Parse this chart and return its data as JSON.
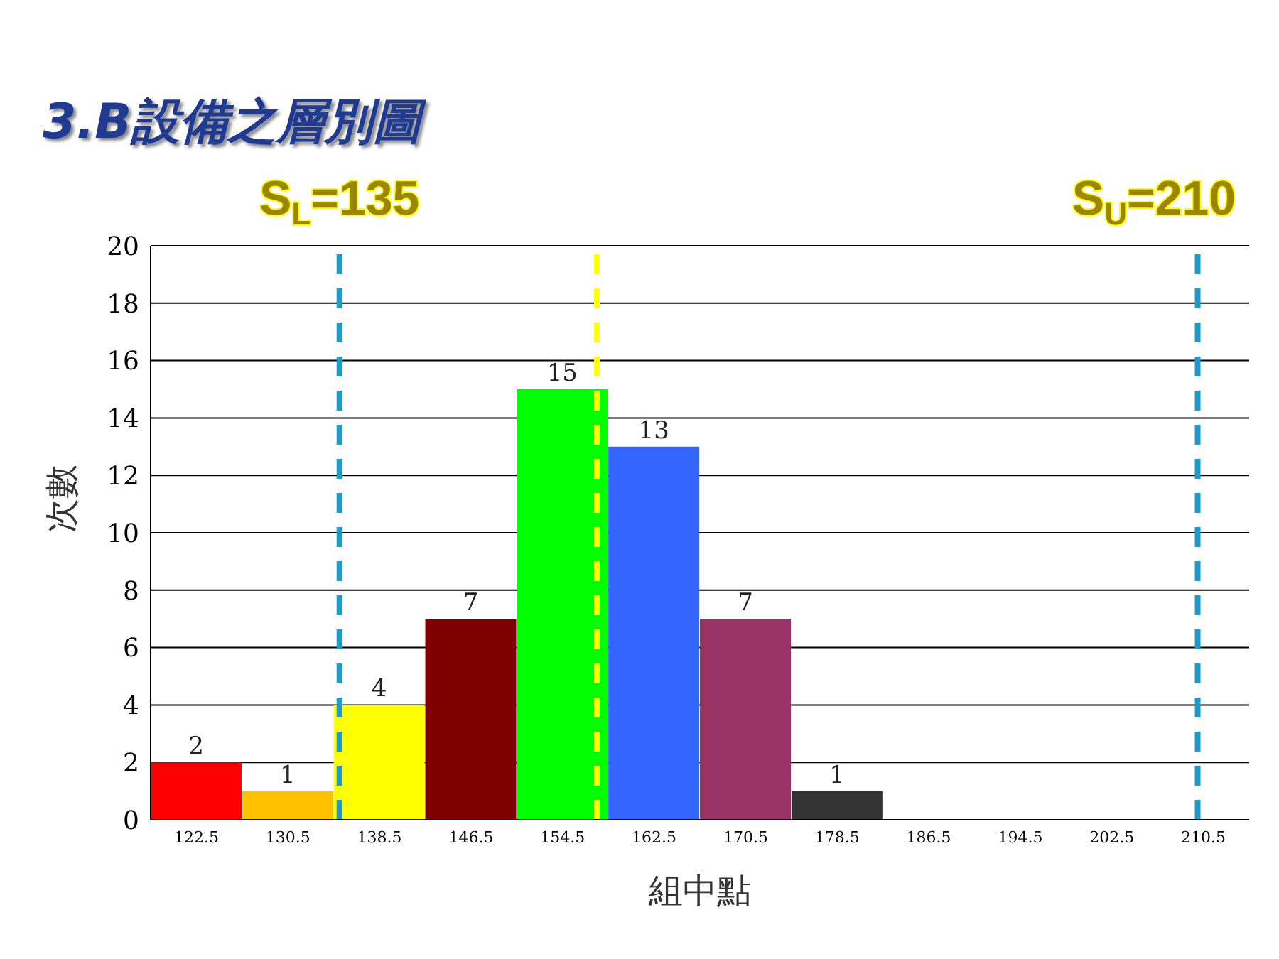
{
  "chart_data": {
    "type": "histogram",
    "title": "3.B設備之層別圖",
    "xlabel": "組中點",
    "ylabel": "次數",
    "bins": [
      118.5,
      126.5,
      134.5,
      142.5,
      150.5,
      158.5,
      166.5,
      174.5,
      182.5,
      190.5,
      198.5,
      206.5,
      214.5
    ],
    "values": [
      2,
      1,
      4,
      7,
      15,
      13,
      7,
      1,
      0,
      0,
      0,
      0
    ],
    "colors": [
      "#ff0000",
      "#ffc000",
      "#ffff00",
      "#800000",
      "#00ff00",
      "#3366ff",
      "#993366",
      "#333333",
      "#333333",
      "#333333",
      "#333333",
      "#333333"
    ],
    "value_labels": [
      "2",
      "1",
      "4",
      "7",
      "15",
      "13",
      "7",
      "1",
      null,
      null,
      null,
      null
    ],
    "xlim": [
      118.5,
      214.5
    ],
    "xticks": [
      122.5,
      130.5,
      138.5,
      146.5,
      154.5,
      162.5,
      170.5,
      178.5,
      186.5,
      194.5,
      202.5,
      210.5
    ],
    "ylim": [
      0,
      20
    ],
    "yticks": [
      0,
      2,
      4,
      6,
      8,
      10,
      12,
      14,
      16,
      18,
      20
    ],
    "grid": "y",
    "ref_lines": [
      {
        "axis": "x",
        "value": 135,
        "label": "S$_{L}$=135",
        "color": "#1e9bc8",
        "line_style": "dashed"
      },
      {
        "axis": "x",
        "value": 157.5,
        "label": null,
        "color": "#ffff00",
        "line_style": "dashed"
      },
      {
        "axis": "x",
        "value": 210,
        "label": "S$_{U}$=210",
        "color": "#1e9bc8",
        "line_style": "dashed"
      }
    ]
  }
}
